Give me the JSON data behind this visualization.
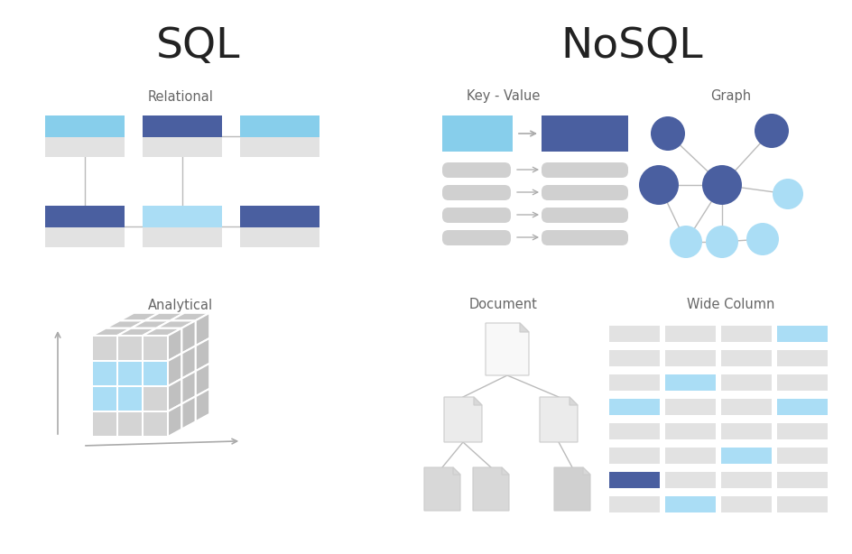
{
  "bg_color": "#ffffff",
  "sql_title": "SQL",
  "nosql_title": "NoSQL",
  "subtitle_relational": "Relational",
  "subtitle_analytical": "Analytical",
  "subtitle_keyvalue": "Key - Value",
  "subtitle_graph": "Graph",
  "subtitle_document": "Document",
  "subtitle_widecolumn": "Wide Column",
  "color_light_blue": "#87CEEB",
  "color_dark_blue": "#4a5fa0",
  "color_light_cyan": "#aaddf5",
  "color_gray": "#d0d0d0",
  "color_light_gray": "#e2e2e2",
  "color_line": "#bbbbbb",
  "color_arrow": "#aaaaaa",
  "wc_highlights": {
    "0_3": "cyan",
    "2_1": "cyan",
    "3_0": "cyan",
    "3_3": "cyan",
    "5_2": "cyan",
    "6_0": "darkblue",
    "7_1": "cyan"
  }
}
